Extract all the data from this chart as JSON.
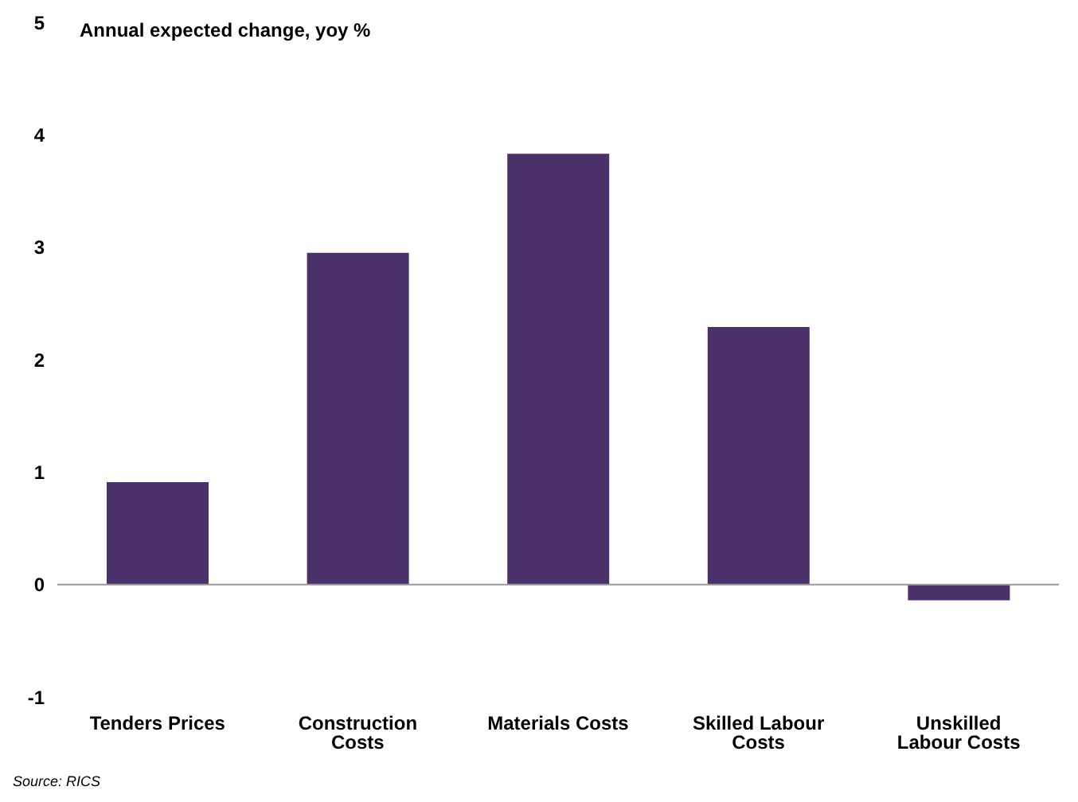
{
  "chart_data": {
    "type": "bar",
    "title": "Annual expected change, yoy %",
    "categories": [
      "Tenders Prices",
      "Construction Costs",
      "Materials Costs",
      "Skilled Labour Costs",
      "Unskilled Labour Costs"
    ],
    "values": [
      0.91,
      2.95,
      3.83,
      2.29,
      -0.14
    ],
    "color": "#4b3169",
    "ylim": [
      -1,
      5
    ],
    "yticks": [
      -1,
      0,
      1,
      2,
      3,
      4,
      5
    ],
    "grid": false,
    "ref_lines": [
      {
        "axis": "y",
        "value": 0,
        "color": "#999999"
      }
    ],
    "annotations": [
      "Source: RICS"
    ]
  }
}
